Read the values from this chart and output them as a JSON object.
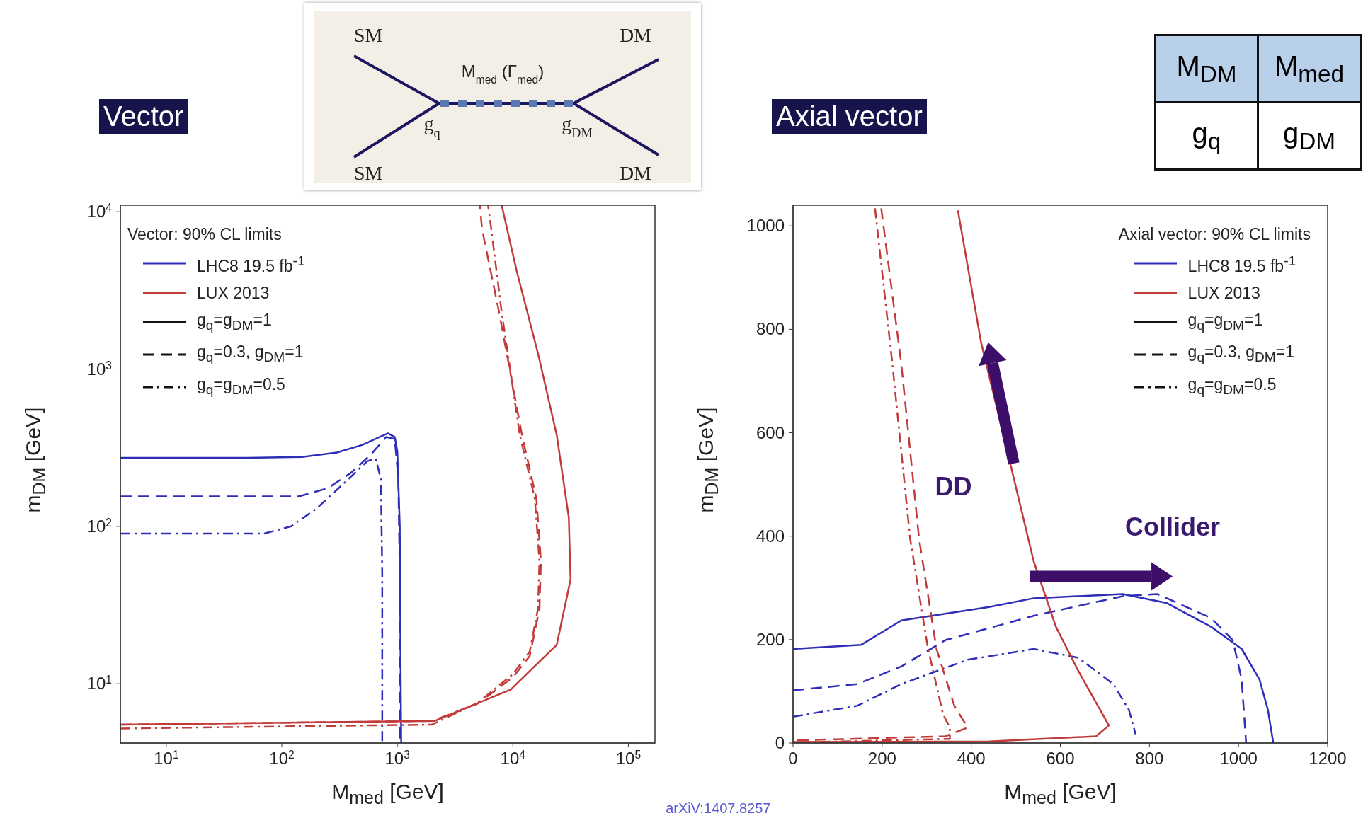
{
  "chart_data": [
    {
      "type": "other",
      "annotations": [
        "SM",
        "SM",
        "DM",
        "DM",
        "M$_{med}$ (Γ$_{med}$)",
        "g$_{q}$",
        "g$_{DM}$"
      ]
    },
    {
      "type": "other",
      "annotations": [
        "M$_{DM}$",
        "M$_{med}$",
        "g$_{q}$",
        "g$_{DM}$"
      ]
    },
    {
      "type": "line",
      "title": "Vector",
      "xlabel": "M$_{med}$ [GeV]",
      "ylabel": "m$_{DM}$ [GeV]",
      "legend_title": "Vector: 90% CL limits",
      "legend": "top left",
      "log": "xy",
      "xlim": [
        4,
        170000
      ],
      "ylim": [
        4.2,
        11000
      ],
      "xticks": [
        {
          "value": 10,
          "label": "10$^{1}$"
        },
        {
          "value": 100,
          "label": "10$^{2}$"
        },
        {
          "value": 1000,
          "label": "10$^{3}$"
        },
        {
          "value": 10000,
          "label": "10$^{4}$"
        },
        {
          "value": 100000,
          "label": "10$^{5}$"
        }
      ],
      "yticks": [
        {
          "value": 10,
          "label": "10$^{1}$"
        },
        {
          "value": 100,
          "label": "10$^{2}$"
        },
        {
          "value": 1000,
          "label": "10$^{3}$"
        },
        {
          "value": 10000,
          "label": "10$^{4}$"
        }
      ],
      "series": [
        {
          "name": "LHC8 19.5 fb$^{-1}$",
          "color": "#2e2eb8",
          "line_style": "solid",
          "x": [
            4,
            50,
            150,
            300,
            500,
            700,
            830,
            950,
            1000,
            1050,
            1070,
            1080
          ],
          "values": [
            273,
            273,
            276,
            295,
            330,
            370,
            390,
            370,
            300,
            100,
            10,
            4.2
          ]
        },
        {
          "color": "#2e2eb8",
          "line_style": "dashed",
          "x": [
            4,
            140,
            250,
            400,
            600,
            800,
            950,
            1020,
            1050,
            1060
          ],
          "values": [
            155,
            155,
            175,
            220,
            290,
            370,
            360,
            200,
            50,
            4.2
          ]
        },
        {
          "color": "#2e2eb8",
          "line_style": "dashdot",
          "x": [
            4,
            70,
            120,
            200,
            350,
            550,
            650,
            720,
            740,
            740
          ],
          "values": [
            90,
            90,
            100,
            130,
            190,
            260,
            270,
            200,
            50,
            4.2
          ]
        },
        {
          "name": "LUX 2013",
          "color": "#c23b3b",
          "line_style": "solid",
          "x": [
            4,
            2100,
            9600,
            24000,
            31600,
            30500,
            24000,
            16500,
            10800,
            8300,
            8000
          ],
          "values": [
            5.5,
            5.8,
            9.2,
            17.7,
            46,
            114,
            380,
            1260,
            4200,
            9800,
            11000
          ]
        },
        {
          "color": "#c23b3b",
          "line_style": "dashed",
          "x": [
            4,
            2000,
            5000,
            10000,
            14000,
            17000,
            17500,
            16000,
            12000,
            7600,
            5400,
            5200
          ],
          "values": [
            5.5,
            5.8,
            7.5,
            11,
            15,
            30,
            60,
            150,
            380,
            2300,
            7800,
            11000
          ]
        },
        {
          "color": "#c23b3b",
          "line_style": "dashdot",
          "x": [
            4,
            2000,
            5000,
            10000,
            14000,
            16500,
            17000,
            15500,
            11500,
            8000,
            6500,
            6100
          ],
          "values": [
            5.2,
            5.5,
            7.6,
            11.5,
            16,
            30,
            60,
            150,
            380,
            2300,
            7800,
            11000
          ]
        }
      ],
      "annotations": [
        "g$_{q}$=g$_{DM}$=1",
        "g$_{q}$=0.3, g$_{DM}$=1",
        "g$_{q}$=g$_{DM}$=0.5"
      ]
    },
    {
      "type": "line",
      "title": "Axial vector",
      "xlabel": "M$_{med}$ [GeV]",
      "ylabel": "m$_{DM}$ [GeV]",
      "legend_title": "Axial vector: 90% CL limits",
      "legend": "top right",
      "xlim": [
        0,
        1200
      ],
      "ylim": [
        0,
        1040
      ],
      "xticks": [
        0,
        200,
        400,
        600,
        800,
        1000,
        1200
      ],
      "yticks": [
        0,
        200,
        400,
        600,
        800,
        1000
      ],
      "series": [
        {
          "name": "LHC8 19.5 fb$^{-1}$",
          "color": "#2e2eb8",
          "line_style": "solid",
          "x": [
            0,
            153,
            243,
            440,
            540,
            740,
            838,
            938,
            1007,
            1047,
            1066,
            1078
          ],
          "values": [
            182,
            190,
            237,
            263,
            280,
            288,
            271,
            225,
            182,
            123,
            64,
            0
          ]
        },
        {
          "color": "#2e2eb8",
          "line_style": "dashed",
          "x": [
            0,
            144,
            243,
            342,
            540,
            740,
            818,
            938,
            987,
            1007,
            1017
          ],
          "values": [
            102,
            114,
            148,
            199,
            246,
            284,
            288,
            242,
            199,
            123,
            0
          ]
        },
        {
          "color": "#2e2eb8",
          "line_style": "dashdot",
          "x": [
            0,
            144,
            243,
            392,
            540,
            640,
            719,
            754,
            769
          ],
          "values": [
            51,
            72,
            114,
            161,
            182,
            165,
            114,
            64,
            17
          ]
        },
        {
          "name": "LUX 2013",
          "color": "#c23b3b",
          "line_style": "solid",
          "x": [
            370,
            422,
            481,
            540,
            590,
            640,
            709,
            680,
            441,
            0
          ],
          "values": [
            1030,
            775,
            564,
            352,
            225,
            140,
            34,
            13,
            3,
            2
          ]
        },
        {
          "color": "#c23b3b",
          "line_style": "dashed",
          "x": [
            198,
            243,
            283,
            322,
            362,
            392,
            342,
            0
          ],
          "values": [
            1034,
            733,
            394,
            182,
            72,
            30,
            13,
            5
          ]
        },
        {
          "color": "#c23b3b",
          "line_style": "dashdot",
          "x": [
            184,
            223,
            263,
            303,
            337,
            352,
            352,
            0
          ],
          "values": [
            1034,
            733,
            394,
            182,
            55,
            30,
            8,
            1
          ]
        }
      ],
      "annotations": [
        "g$_{q}$=g$_{DM}$=1",
        "g$_{q}$=0.3, g$_{DM}$=1",
        "g$_{q}$=g$_{DM}$=0.5",
        "DD",
        "Collider",
        "arXiV:1407.8257"
      ]
    }
  ]
}
